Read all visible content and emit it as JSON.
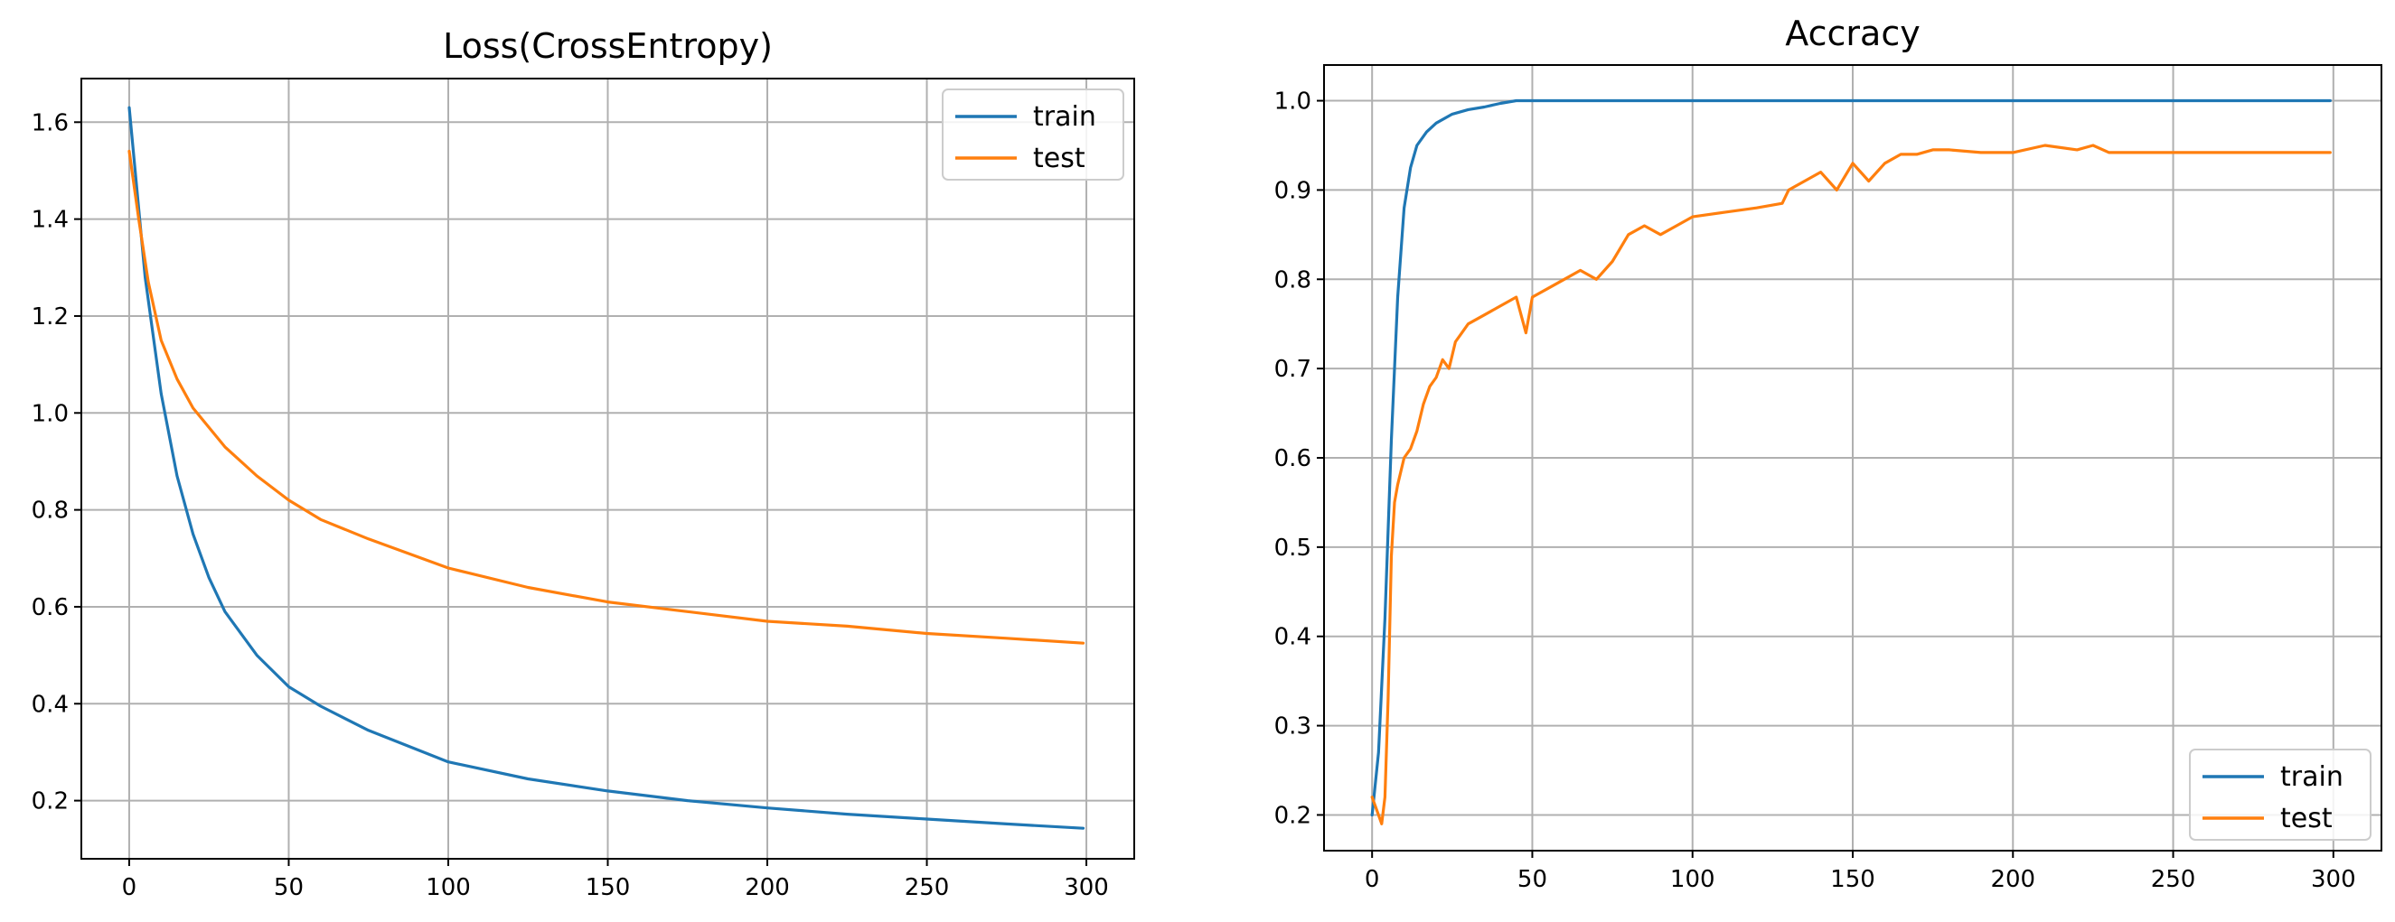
{
  "chart_data": [
    {
      "type": "line",
      "title": "Loss(CrossEntropy)",
      "xlabel": "",
      "ylabel": "",
      "xlim": [
        -15,
        315
      ],
      "ylim": [
        0.08,
        1.69
      ],
      "xticks": [
        0,
        50,
        100,
        150,
        200,
        250,
        300
      ],
      "yticks": [
        0.2,
        0.4,
        0.6,
        0.8,
        1.0,
        1.2,
        1.4,
        1.6
      ],
      "ytick_labels": [
        "0.2",
        "0.4",
        "0.6",
        "0.8",
        "1.0",
        "1.2",
        "1.4",
        "1.6"
      ],
      "grid": true,
      "legend_position": "top-right",
      "series": [
        {
          "name": "train",
          "color": "#1f77b4",
          "x": [
            0,
            5,
            10,
            15,
            20,
            25,
            30,
            40,
            50,
            60,
            75,
            100,
            125,
            150,
            175,
            200,
            225,
            250,
            275,
            299
          ],
          "y": [
            1.63,
            1.28,
            1.04,
            0.87,
            0.75,
            0.66,
            0.59,
            0.5,
            0.435,
            0.395,
            0.345,
            0.28,
            0.245,
            0.22,
            0.2,
            0.185,
            0.172,
            0.162,
            0.152,
            0.143
          ]
        },
        {
          "name": "test",
          "color": "#ff7f0e",
          "x": [
            0,
            3,
            6,
            10,
            15,
            20,
            30,
            40,
            50,
            60,
            75,
            100,
            125,
            150,
            175,
            200,
            225,
            250,
            275,
            299
          ],
          "y": [
            1.54,
            1.4,
            1.27,
            1.15,
            1.07,
            1.01,
            0.93,
            0.87,
            0.82,
            0.78,
            0.74,
            0.68,
            0.64,
            0.61,
            0.59,
            0.57,
            0.56,
            0.545,
            0.535,
            0.525
          ]
        }
      ]
    },
    {
      "type": "line",
      "title": "Accracy",
      "xlabel": "",
      "ylabel": "",
      "xlim": [
        -15,
        315
      ],
      "ylim": [
        0.16,
        1.04
      ],
      "xticks": [
        0,
        50,
        100,
        150,
        200,
        250,
        300
      ],
      "yticks": [
        0.2,
        0.3,
        0.4,
        0.5,
        0.6,
        0.7,
        0.8,
        0.9,
        1.0
      ],
      "ytick_labels": [
        "0.2",
        "0.3",
        "0.4",
        "0.5",
        "0.6",
        "0.7",
        "0.8",
        "0.9",
        "1.0"
      ],
      "grid": true,
      "legend_position": "bottom-right",
      "series": [
        {
          "name": "train",
          "color": "#1f77b4",
          "x": [
            0,
            2,
            4,
            6,
            8,
            10,
            12,
            14,
            17,
            20,
            25,
            30,
            35,
            40,
            45,
            50,
            100,
            150,
            200,
            250,
            299
          ],
          "y": [
            0.2,
            0.27,
            0.42,
            0.62,
            0.78,
            0.88,
            0.925,
            0.95,
            0.965,
            0.975,
            0.985,
            0.99,
            0.993,
            0.997,
            1.0,
            1.0,
            1.0,
            1.0,
            1.0,
            1.0,
            1.0
          ]
        },
        {
          "name": "test",
          "color": "#ff7f0e",
          "x": [
            0,
            2,
            3,
            4,
            5,
            6,
            7,
            8,
            10,
            12,
            14,
            16,
            18,
            20,
            22,
            24,
            26,
            28,
            30,
            35,
            40,
            45,
            48,
            50,
            55,
            60,
            65,
            70,
            75,
            80,
            85,
            90,
            95,
            100,
            110,
            120,
            128,
            130,
            135,
            140,
            145,
            150,
            155,
            160,
            165,
            170,
            175,
            180,
            190,
            200,
            210,
            220,
            225,
            230,
            240,
            250,
            299
          ],
          "y": [
            0.22,
            0.2,
            0.19,
            0.22,
            0.33,
            0.49,
            0.55,
            0.57,
            0.6,
            0.61,
            0.63,
            0.66,
            0.68,
            0.69,
            0.71,
            0.7,
            0.73,
            0.74,
            0.75,
            0.76,
            0.77,
            0.78,
            0.74,
            0.78,
            0.79,
            0.8,
            0.81,
            0.8,
            0.82,
            0.85,
            0.86,
            0.85,
            0.86,
            0.87,
            0.875,
            0.88,
            0.885,
            0.9,
            0.91,
            0.92,
            0.9,
            0.93,
            0.91,
            0.93,
            0.94,
            0.94,
            0.945,
            0.945,
            0.942,
            0.942,
            0.95,
            0.945,
            0.95,
            0.942,
            0.942,
            0.942,
            0.942
          ]
        }
      ]
    }
  ]
}
